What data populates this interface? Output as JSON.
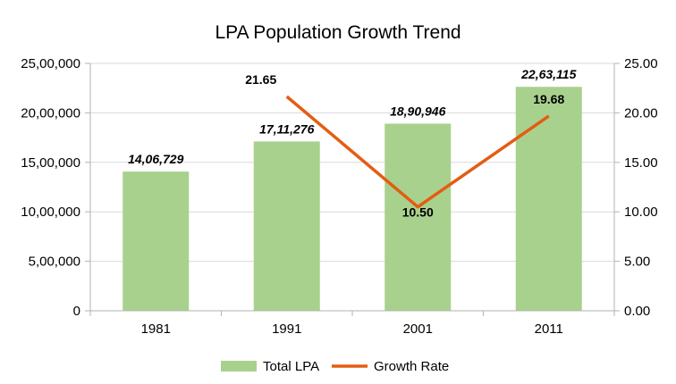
{
  "chart_data": {
    "type": "bar",
    "title": "LPA Population Growth Trend",
    "xlabel": "",
    "ylabel": "",
    "categories": [
      "1981",
      "1991",
      "2001",
      "2011"
    ],
    "series": [
      {
        "name": "Total LPA",
        "type": "bar",
        "axis": "left",
        "values": [
          1406729,
          1711276,
          1890946,
          2263115
        ],
        "data_labels": [
          "14,06,729",
          "17,11,276",
          "18,90,946",
          "22,63,115"
        ],
        "color": "#a9d18e"
      },
      {
        "name": "Growth Rate",
        "type": "line",
        "axis": "right",
        "values": [
          null,
          21.65,
          10.5,
          19.68
        ],
        "data_labels": [
          "",
          "21.65",
          "10.50",
          "19.68"
        ],
        "color": "#e35d12"
      }
    ],
    "ylim": [
      0,
      2500000
    ],
    "yticks": [
      0,
      500000,
      1000000,
      1500000,
      2000000,
      2500000
    ],
    "ytick_labels": [
      "0",
      "5,00,000",
      "10,00,000",
      "15,00,000",
      "20,00,000",
      "25,00,000"
    ],
    "y2lim": [
      0,
      25
    ],
    "y2ticks": [
      0,
      5,
      10,
      15,
      20,
      25
    ],
    "y2tick_labels": [
      "0.00",
      "5.00",
      "10.00",
      "15.00",
      "20.00",
      "25.00"
    ],
    "grid": true,
    "legend": "bottom"
  }
}
